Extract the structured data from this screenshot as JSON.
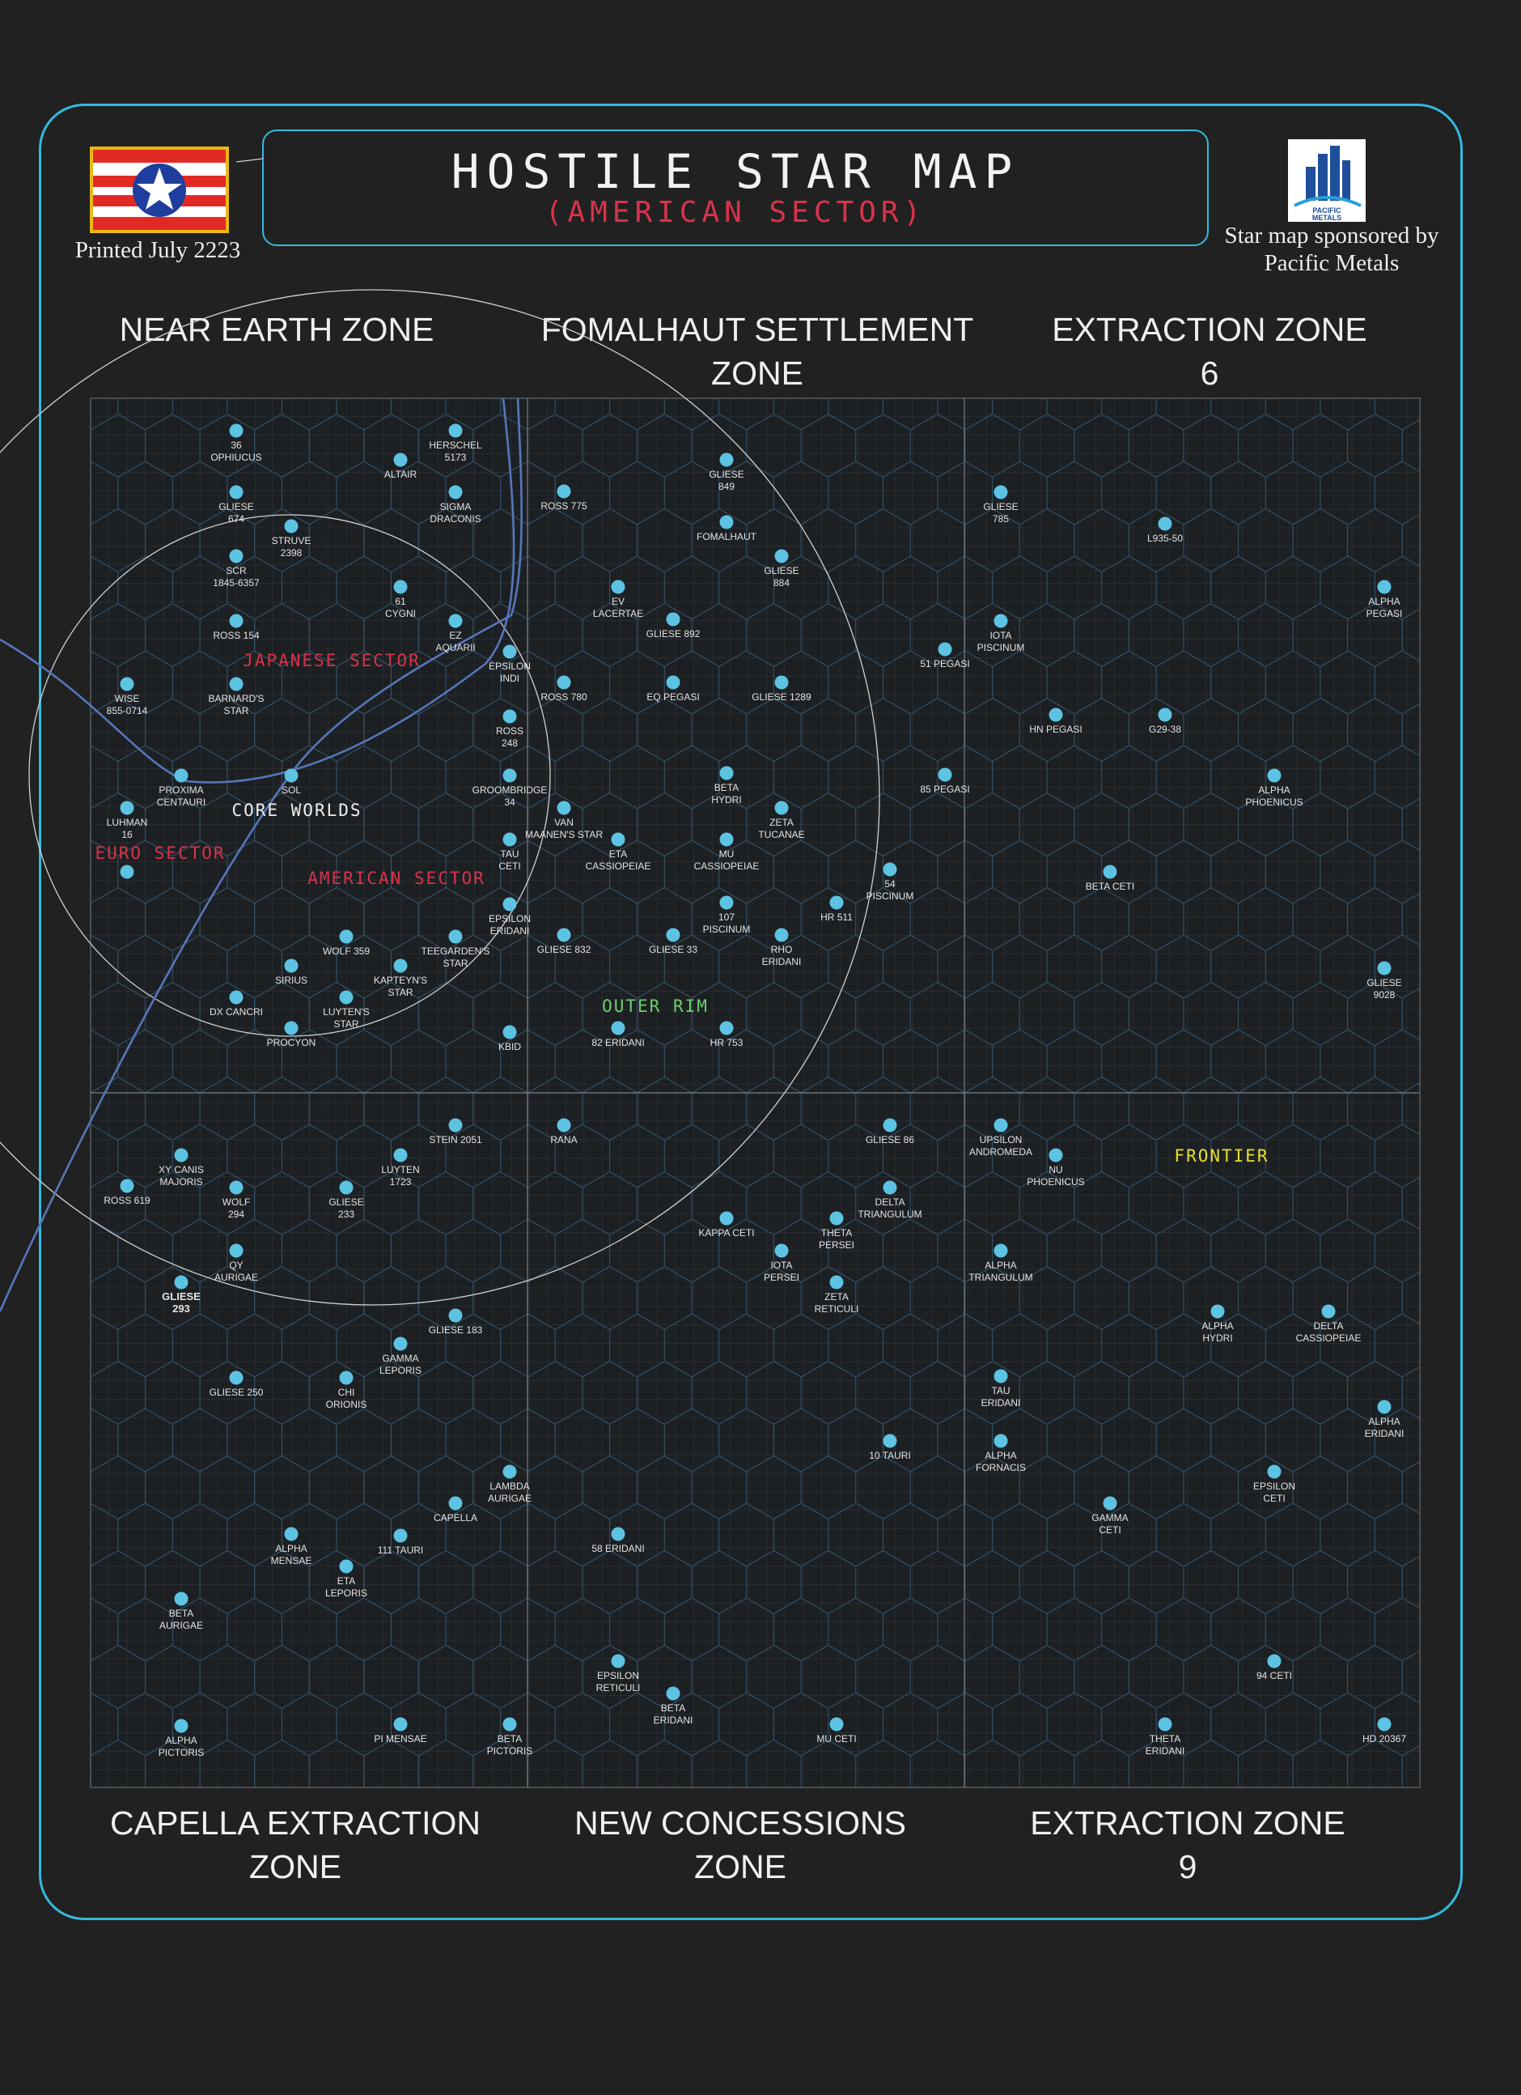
{
  "header": {
    "title": "HOSTILE STAR MAP",
    "subtitle": "(AMERICAN SECTOR)",
    "printed": "Printed July 2223",
    "sponsor_line1": "Star map sponsored by",
    "sponsor_line2": "Pacific Metals",
    "logo_text_1": "PACIFIC",
    "logo_text_2": "METALS"
  },
  "zones": {
    "top": [
      {
        "line1": "NEAR EARTH ZONE",
        "line2": ""
      },
      {
        "line1": "FOMALHAUT SETTLEMENT",
        "line2": "ZONE"
      },
      {
        "line1": "EXTRACTION ZONE",
        "line2": "6"
      }
    ],
    "bottom": [
      {
        "line1": "CAPELLA EXTRACTION",
        "line2": "ZONE"
      },
      {
        "line1": "NEW CONCESSIONS",
        "line2": "ZONE"
      },
      {
        "line1": "EXTRACTION ZONE",
        "line2": "9"
      }
    ]
  },
  "colors": {
    "background": "#212121",
    "frame": "#35b9dd",
    "star": "#5cc3e3",
    "grid": "#333a40",
    "hex": "#34526a",
    "route": "#5577bb",
    "american_sector": "#d8334b",
    "japanese_sector": "#d8334b",
    "euro_sector": "#d8334b",
    "outer_rim": "#6bd16b",
    "frontier": "#e8e02a",
    "core_worlds": "#eeeeee"
  },
  "sectors": [
    {
      "label": "JAPANESE SECTOR",
      "color": "#d8334b",
      "x": 1,
      "y": 12
    },
    {
      "label": "CORE WORLDS",
      "color": "#eeeeee",
      "x": 1,
      "y": 20
    },
    {
      "label": "EURO SECTOR",
      "color": "#d8334b",
      "x": 1,
      "y": 23
    },
    {
      "label": "AMERICAN SECTOR",
      "color": "#d8334b",
      "x": 1,
      "y": 24
    },
    {
      "label": "OUTER RIM",
      "color": "#6bd16b",
      "x": 1,
      "y": 36
    },
    {
      "label": "FRONTIER",
      "color": "#e8e02a",
      "x": 1,
      "y": 43
    }
  ],
  "stars": [
    {
      "name": [
        "36",
        "OPHIUCUS"
      ]
    },
    {
      "name": [
        "HERSCHEL",
        "5173"
      ]
    },
    {
      "name": [
        "ALTAIR"
      ]
    },
    {
      "name": [
        "GLIESE",
        "674"
      ]
    },
    {
      "name": [
        "SIGMA",
        "DRACONIS"
      ]
    },
    {
      "name": [
        "STRUVE",
        "2398"
      ]
    },
    {
      "name": [
        "SCR",
        "1845-6357"
      ]
    },
    {
      "name": [
        "61",
        "CYGNI"
      ]
    },
    {
      "name": [
        "ROSS 154"
      ]
    },
    {
      "name": [
        "EZ",
        "AQUARII"
      ]
    },
    {
      "name": [
        "EPSILON",
        "INDI"
      ]
    },
    {
      "name": [
        "WISE",
        "855-0714"
      ]
    },
    {
      "name": [
        "BARNARD'S",
        "STAR"
      ]
    },
    {
      "name": [
        "ROSS",
        "248"
      ]
    },
    {
      "name": [
        "PROXIMA",
        "CENTAURI"
      ]
    },
    {
      "name": [
        "SOL"
      ]
    },
    {
      "name": [
        "GROOMBRIDGE",
        "34"
      ]
    },
    {
      "name": [
        "LUHMAN",
        "16"
      ]
    },
    {
      "name": [
        "TAU",
        "CETI"
      ]
    },
    {
      "name": [
        ""
      ]
    },
    {
      "name": [
        "EPSILON",
        "ERIDANI"
      ]
    },
    {
      "name": [
        "WOLF 359"
      ]
    },
    {
      "name": [
        "TEEGARDEN'S",
        "STAR"
      ]
    },
    {
      "name": [
        "SIRIUS"
      ]
    },
    {
      "name": [
        "KAPTEYN'S",
        "STAR"
      ]
    },
    {
      "name": [
        "DX CANCRI"
      ]
    },
    {
      "name": [
        "LUYTEN'S",
        "STAR"
      ]
    },
    {
      "name": [
        "PROCYON"
      ]
    },
    {
      "name": [
        "KBID"
      ]
    },
    {
      "name": [
        "GLIESE",
        "849"
      ]
    },
    {
      "name": [
        "ROSS 775"
      ]
    },
    {
      "name": [
        "FOMALHAUT"
      ]
    },
    {
      "name": [
        "GLIESE",
        "884"
      ]
    },
    {
      "name": [
        "EV",
        "LACERTAE"
      ]
    },
    {
      "name": [
        "GLIESE 892"
      ]
    },
    {
      "name": [
        "51 PEGASI"
      ]
    },
    {
      "name": [
        "ROSS 780"
      ]
    },
    {
      "name": [
        "EQ PEGASI"
      ]
    },
    {
      "name": [
        "GLIESE 1289"
      ]
    },
    {
      "name": [
        "BETA",
        "HYDRI"
      ]
    },
    {
      "name": [
        "85 PEGASI"
      ]
    },
    {
      "name": [
        "VAN",
        "MAANEN'S STAR"
      ]
    },
    {
      "name": [
        "ZETA",
        "TUCANAE"
      ]
    },
    {
      "name": [
        "ETA",
        "CASSIOPEIAE"
      ]
    },
    {
      "name": [
        "MU",
        "CASSIOPEIAE"
      ]
    },
    {
      "name": [
        "54",
        "PISCINUM"
      ]
    },
    {
      "name": [
        "107",
        "PISCINUM"
      ]
    },
    {
      "name": [
        "HR 511"
      ]
    },
    {
      "name": [
        "GLIESE 832"
      ]
    },
    {
      "name": [
        "GLIESE 33"
      ]
    },
    {
      "name": [
        "RHO",
        "ERIDANI"
      ]
    },
    {
      "name": [
        "82 ERIDANI"
      ]
    },
    {
      "name": [
        "HR 753"
      ]
    },
    {
      "name": [
        "GLIESE",
        "785"
      ]
    },
    {
      "name": [
        "L935-50"
      ]
    },
    {
      "name": [
        "ALPHA",
        "PEGASI"
      ]
    },
    {
      "name": [
        "IOTA",
        "PISCINUM"
      ]
    },
    {
      "name": [
        "HN PEGASI"
      ]
    },
    {
      "name": [
        "G29-38"
      ]
    },
    {
      "name": [
        "ALPHA",
        "PHOENICUS"
      ]
    },
    {
      "name": [
        "BETA CETI"
      ]
    },
    {
      "name": [
        "GLIESE",
        "9028"
      ]
    },
    {
      "name": [
        "STEIN 2051"
      ]
    },
    {
      "name": [
        "XY CANIS",
        "MAJORIS"
      ]
    },
    {
      "name": [
        "LUYTEN",
        "1723"
      ]
    },
    {
      "name": [
        "ROSS 619"
      ]
    },
    {
      "name": [
        "WOLF",
        "294"
      ]
    },
    {
      "name": [
        "GLIESE",
        "233"
      ]
    },
    {
      "name": [
        "QY",
        "AURIGAE"
      ]
    },
    {
      "name": [
        "GLIESE",
        "293"
      ],
      "bold": true
    },
    {
      "name": [
        "GLIESE 183"
      ]
    },
    {
      "name": [
        "GAMMA",
        "LEPORIS"
      ]
    },
    {
      "name": [
        "GLIESE 250"
      ]
    },
    {
      "name": [
        "CHI",
        "ORIONIS"
      ]
    },
    {
      "name": [
        "LAMBDA",
        "AURIGAE"
      ]
    },
    {
      "name": [
        "CAPELLA"
      ]
    },
    {
      "name": [
        "ALPHA",
        "MENSAE"
      ]
    },
    {
      "name": [
        "111 TAURI"
      ]
    },
    {
      "name": [
        "ETA",
        "LEPORIS"
      ]
    },
    {
      "name": [
        "BETA",
        "AURIGAE"
      ]
    },
    {
      "name": [
        "ALPHA",
        "PICTORIS"
      ]
    },
    {
      "name": [
        "PI MENSAE"
      ]
    },
    {
      "name": [
        "BETA",
        "PICTORIS"
      ]
    },
    {
      "name": [
        "RANA"
      ]
    },
    {
      "name": [
        "GLIESE 86"
      ]
    },
    {
      "name": [
        "DELTA",
        "TRIANGULUM"
      ]
    },
    {
      "name": [
        "KAPPA CETI"
      ]
    },
    {
      "name": [
        "THETA",
        "PERSEI"
      ]
    },
    {
      "name": [
        "IOTA",
        "PERSEI"
      ]
    },
    {
      "name": [
        "ZETA",
        "RETICULI"
      ]
    },
    {
      "name": [
        "10 TAURI"
      ]
    },
    {
      "name": [
        "58 ERIDANI"
      ]
    },
    {
      "name": [
        "EPSILON",
        "RETICULI"
      ]
    },
    {
      "name": [
        "BETA",
        "ERIDANI"
      ]
    },
    {
      "name": [
        "MU CETI"
      ]
    },
    {
      "name": [
        "UPSILON",
        "ANDROMEDA"
      ]
    },
    {
      "name": [
        "NU",
        "PHOENICUS"
      ]
    },
    {
      "name": [
        "ALPHA",
        "TRIANGULUM"
      ]
    },
    {
      "name": [
        "ALPHA",
        "HYDRI"
      ]
    },
    {
      "name": [
        "DELTA",
        "CASSIOPEIAE"
      ]
    },
    {
      "name": [
        "ALPHA",
        "ERIDANI"
      ]
    },
    {
      "name": [
        "TAU",
        "ERIDANI"
      ]
    },
    {
      "name": [
        "ALPHA",
        "FORNACIS"
      ]
    },
    {
      "name": [
        "EPSILON",
        "CETI"
      ]
    },
    {
      "name": [
        "GAMMA",
        "CETI"
      ]
    },
    {
      "name": [
        "94 CETI"
      ]
    },
    {
      "name": [
        "THETA",
        "ERIDANI"
      ]
    },
    {
      "name": [
        "HD 20367"
      ]
    }
  ]
}
